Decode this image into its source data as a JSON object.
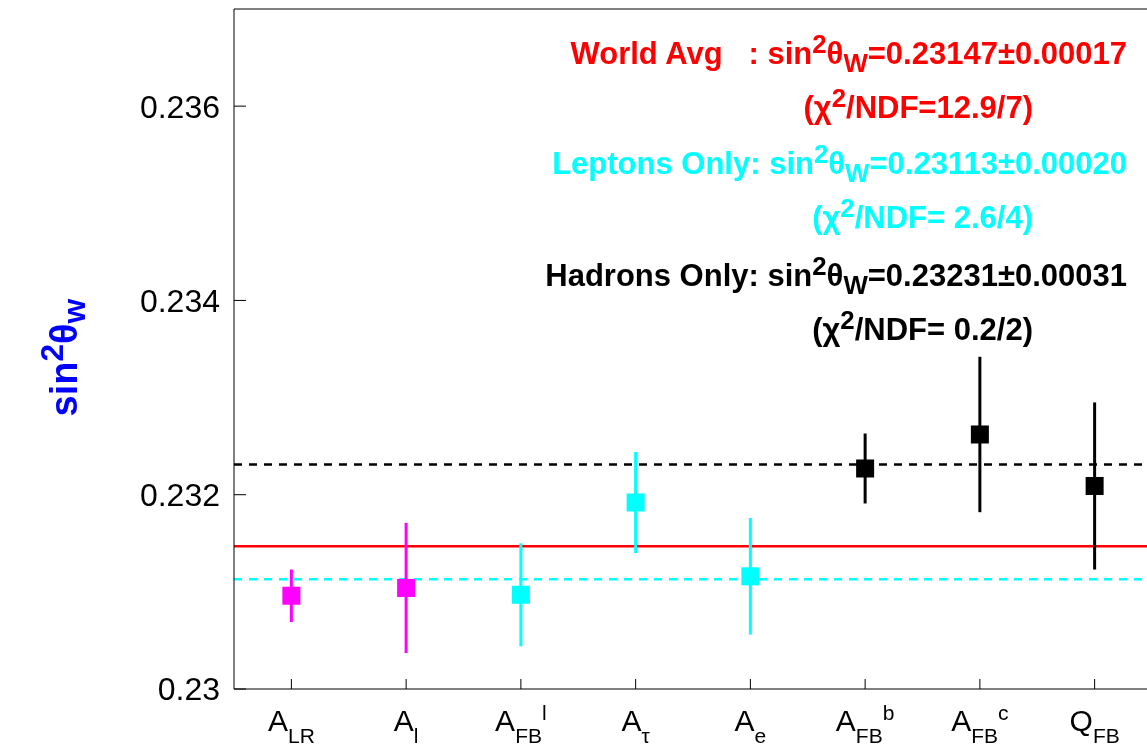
{
  "chart_data": {
    "type": "scatter",
    "ylabel": "sin$^{2}$θ$_{w}$",
    "categories": [
      "A$_{LR}$",
      "A$_{l}$",
      "A$_{FB}$$^{l}$",
      "A$_{τ}$",
      "A$_{e}$",
      "A$_{FB}$$^{b}$",
      "A$_{FB}$$^{c}$",
      "Q$_{FB}$"
    ],
    "series": [
      {
        "color": "#ff00ff",
        "values": [
          0.23096,
          0.23104,
          null,
          null,
          null,
          null,
          null,
          null
        ],
        "errors": [
          0.00027,
          0.00067,
          null,
          null,
          null,
          null,
          null,
          null
        ]
      },
      {
        "color": "#00ffff",
        "values": [
          null,
          null,
          0.23097,
          0.23192,
          0.23116,
          null,
          null,
          null
        ],
        "errors": [
          null,
          null,
          0.00053,
          0.00052,
          0.0006,
          null,
          null,
          null
        ]
      },
      {
        "color": "#000000",
        "values": [
          null,
          null,
          null,
          null,
          null,
          0.23227,
          0.23262,
          0.23209
        ],
        "errors": [
          null,
          null,
          null,
          null,
          null,
          0.00036,
          0.0008,
          0.00086
        ]
      }
    ],
    "ylim": [
      0.23,
      0.237
    ],
    "yticks": [
      0.23,
      0.232,
      0.234,
      0.236
    ],
    "marker": "square",
    "ref_lines": [
      {
        "axis": "y",
        "value": 0.23147,
        "color": "#ff0000",
        "line_style": "solid"
      },
      {
        "axis": "y",
        "value": 0.23113,
        "color": "#00ffff",
        "line_style": "dashed"
      },
      {
        "axis": "y",
        "value": 0.23231,
        "color": "#000000",
        "line_style": "dashed"
      }
    ],
    "annotations": [
      "World Avg   : sin$^{2}$θ$_{W}$=0.23147±0.00017",
      "(χ$^{2}$/NDF=12.9/7)",
      "Leptons Only: sin$^{2}$θ$_{W}$=0.23113±0.00020",
      "(χ$^{2}$/NDF= 2.6/4)",
      "Hadrons Only: sin$^{2}$θ$_{W}$=0.23231±0.00031",
      "(χ$^{2}$/NDF= 0.2/2)"
    ]
  }
}
